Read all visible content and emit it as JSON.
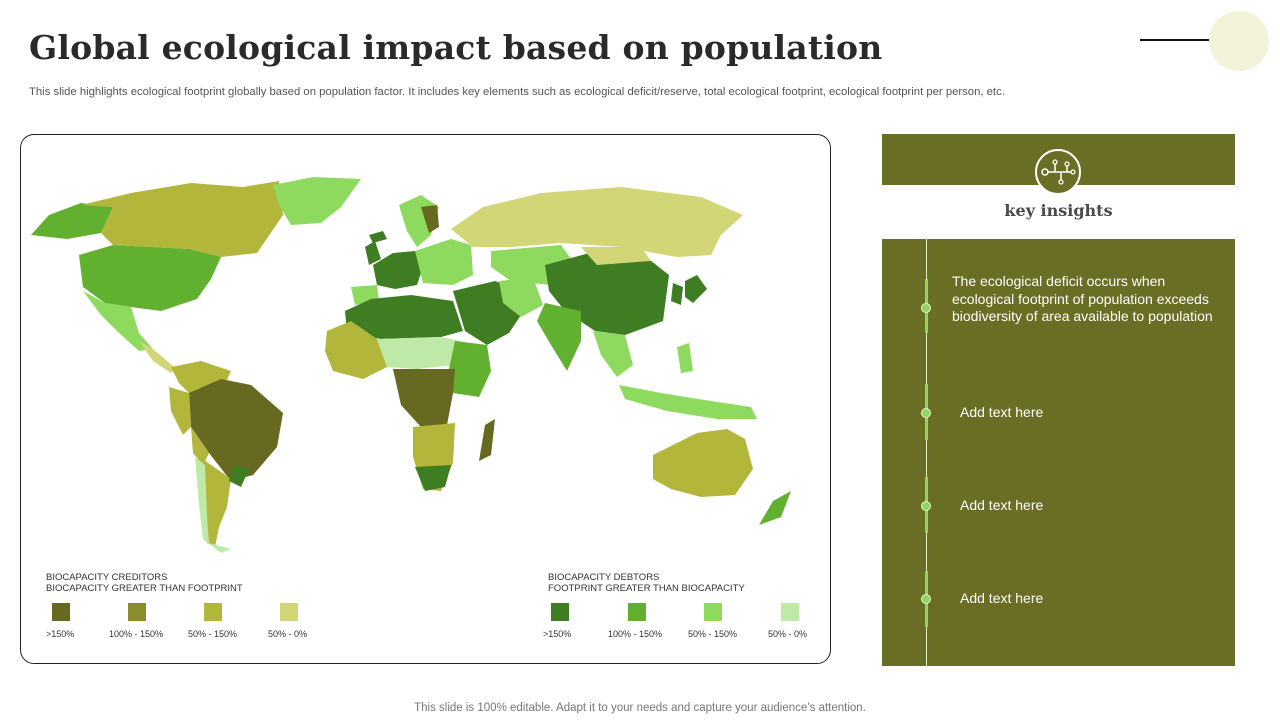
{
  "header": {
    "title": "Global ecological impact based on population",
    "subtitle": "This slide highlights ecological footprint globally based on population factor. It includes key elements such as ecological deficit/reserve, total ecological footprint, ecological footprint per person, etc."
  },
  "legend": {
    "creditors": {
      "heading_line1": "BIOCAPACITY CREDITORS",
      "heading_line2": "BIOCAPACITY GREATER THAN FOOTPRINT",
      "items": [
        {
          "label": ">150%",
          "color": "#66691f"
        },
        {
          "label": "100% - 150%",
          "color": "#8a8c2e"
        },
        {
          "label": "50% - 150%",
          "color": "#b2b73b"
        },
        {
          "label": "50% - 0%",
          "color": "#d2d676"
        }
      ]
    },
    "debtors": {
      "heading_line1": "BIOCAPACITY DEBTORS",
      "heading_line2": "FOOTPRINT GREATER THAN BIOCAPACITY",
      "items": [
        {
          "label": ">150%",
          "color": "#3f7d23"
        },
        {
          "label": "100% - 150%",
          "color": "#62b030"
        },
        {
          "label": "50% - 150%",
          "color": "#8dda5e"
        },
        {
          "label": "50% - 0%",
          "color": "#bfe9a6"
        }
      ]
    }
  },
  "insights": {
    "title": "key insights",
    "icon": "circuit-network-icon",
    "items": [
      {
        "text": "The ecological deficit occurs when ecological footprint of population exceeds biodiversity of area available to population"
      },
      {
        "text": "Add text here"
      },
      {
        "text": "Add text here"
      },
      {
        "text": "Add text here"
      }
    ]
  },
  "footer": {
    "text": "This slide is 100% editable. Adapt it to your needs and capture your audience’s attention."
  },
  "colors": {
    "panel": "#6a6e24",
    "accent_dot": "#8fd65a",
    "top_circle": "#f3f3da"
  }
}
